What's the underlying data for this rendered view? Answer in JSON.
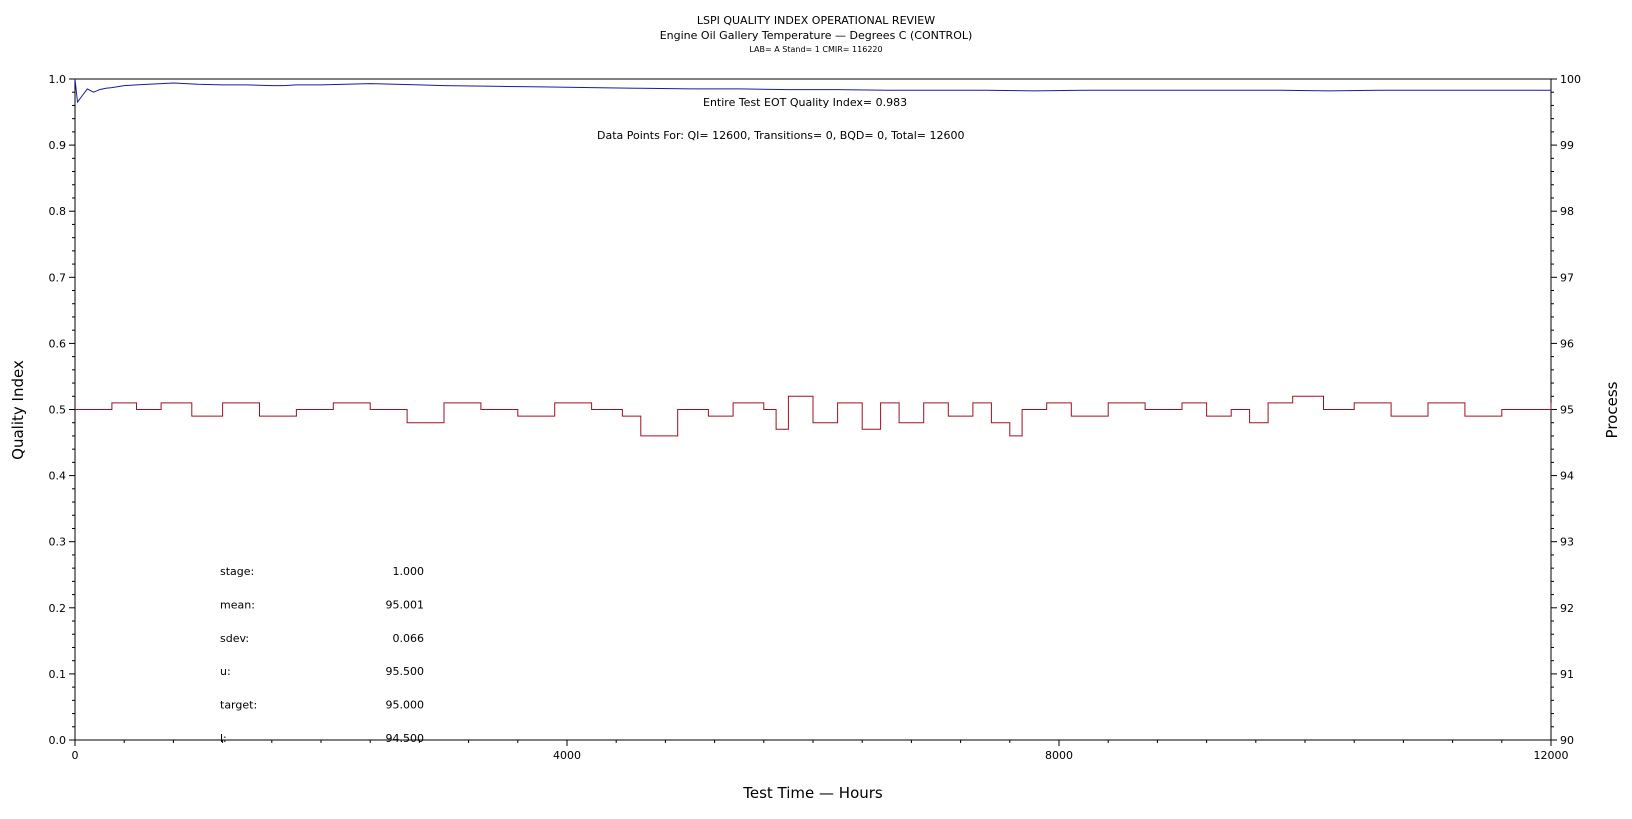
{
  "chart_data": {
    "type": "line",
    "title": "LSPI QUALITY INDEX OPERATIONAL REVIEW",
    "subtitle": "Engine Oil Gallery Temperature — Degrees C (CONTROL)",
    "subtitle2": "LAB= A Stand= 1 CMIR= 116220",
    "xlabel": "Test Time — Hours",
    "ylabel": "Quality Index",
    "y2label": "Process",
    "xlim": [
      0,
      12000
    ],
    "ylim": [
      0,
      1
    ],
    "y2lim": [
      90,
      100
    ],
    "x_ticks": [
      "0",
      "4000",
      "8000",
      "12000"
    ],
    "y_ticks": [
      "0.0",
      "0.1",
      "0.2",
      "0.3",
      "0.4",
      "0.5",
      "0.6",
      "0.7",
      "0.8",
      "0.9",
      "1.0"
    ],
    "y2_ticks": [
      "90",
      "91",
      "92",
      "93",
      "94",
      "95",
      "96",
      "97",
      "98",
      "99",
      "100"
    ],
    "annotations": {
      "eot": "Entire Test EOT Quality Index=   0.983",
      "datapoints": "Data Points For: QI= 12600, Transitions=     0, BQD=     0, Total= 12600"
    },
    "stats": [
      {
        "label": "stage:",
        "value": "1.000"
      },
      {
        "label": "mean:",
        "value": "95.001"
      },
      {
        "label": "sdev:",
        "value": "0.066"
      },
      {
        "label": "u:",
        "value": "95.500"
      },
      {
        "label": "target:",
        "value": "95.000"
      },
      {
        "label": "l:",
        "value": "94.500"
      }
    ],
    "series": [
      {
        "axis": "left",
        "color": "#1a1aa6",
        "x": [
          0,
          20,
          60,
          100,
          150,
          200,
          250,
          300,
          400,
          500,
          600,
          700,
          800,
          900,
          1000,
          1200,
          1400,
          1600,
          1700,
          1800,
          2000,
          2200,
          2400,
          2600,
          2800,
          3000,
          3400,
          3800,
          4200,
          4600,
          5000,
          5400,
          5800,
          6200,
          6600,
          7000,
          7400,
          7800,
          8200,
          8600,
          9000,
          9400,
          9800,
          10200,
          10600,
          11000,
          11400,
          11800,
          12000
        ],
        "values": [
          1.0,
          0.965,
          0.975,
          0.985,
          0.98,
          0.984,
          0.986,
          0.987,
          0.99,
          0.991,
          0.992,
          0.993,
          0.994,
          0.993,
          0.992,
          0.991,
          0.991,
          0.99,
          0.99,
          0.991,
          0.991,
          0.992,
          0.993,
          0.992,
          0.991,
          0.99,
          0.989,
          0.988,
          0.987,
          0.986,
          0.985,
          0.985,
          0.984,
          0.984,
          0.983,
          0.983,
          0.983,
          0.982,
          0.983,
          0.983,
          0.983,
          0.983,
          0.983,
          0.982,
          0.983,
          0.983,
          0.983,
          0.983,
          0.983
        ]
      },
      {
        "axis": "right",
        "color": "#a01020",
        "x": [
          0,
          300,
          500,
          700,
          950,
          1200,
          1500,
          1800,
          2100,
          2400,
          2700,
          3000,
          3300,
          3600,
          3900,
          4200,
          4450,
          4600,
          4900,
          5150,
          5350,
          5600,
          5700,
          5800,
          6000,
          6200,
          6400,
          6550,
          6700,
          6900,
          7100,
          7300,
          7450,
          7600,
          7700,
          7900,
          8100,
          8400,
          8700,
          9000,
          9200,
          9400,
          9550,
          9700,
          9900,
          10150,
          10400,
          10700,
          11000,
          11300,
          11600,
          12000
        ],
        "values": [
          95.0,
          95.1,
          95.0,
          95.1,
          94.9,
          95.1,
          94.9,
          95.0,
          95.1,
          95.0,
          94.8,
          95.1,
          95.0,
          94.9,
          95.1,
          95.0,
          94.9,
          94.6,
          95.0,
          94.9,
          95.1,
          95.0,
          94.7,
          95.2,
          94.8,
          95.1,
          94.7,
          95.1,
          94.8,
          95.1,
          94.9,
          95.1,
          94.8,
          94.6,
          95.0,
          95.1,
          94.9,
          95.1,
          95.0,
          95.1,
          94.9,
          95.0,
          94.8,
          95.1,
          95.2,
          95.0,
          95.1,
          94.9,
          95.1,
          94.9,
          95.0,
          95.1
        ]
      }
    ]
  }
}
